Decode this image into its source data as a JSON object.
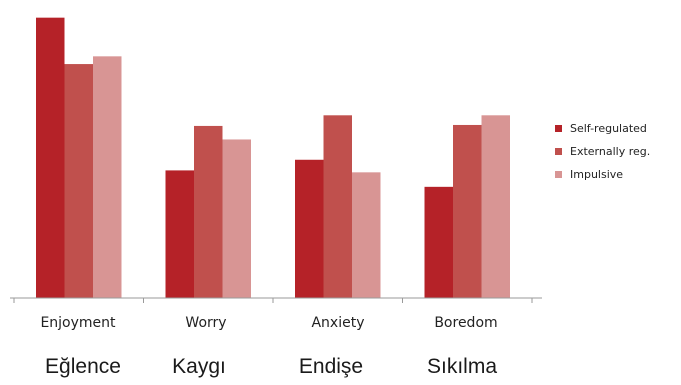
{
  "chart_data": {
    "type": "bar",
    "categories": [
      "Enjoyment",
      "Worry",
      "Anxiety",
      "Boredom"
    ],
    "translations": [
      "Eğlence",
      "Kaygı",
      "Endişe",
      "Sıkılma"
    ],
    "series": [
      {
        "name": "Self-regulated",
        "color": "#b52228",
        "values": [
          290,
          132,
          143,
          115
        ]
      },
      {
        "name": "Externally reg.",
        "color": "#c0504d",
        "values": [
          242,
          178,
          189,
          179
        ]
      },
      {
        "name": "Impulsive",
        "color": "#d89594",
        "values": [
          250,
          164,
          130,
          189
        ]
      }
    ],
    "ylim": [
      0,
      300
    ],
    "grid": false,
    "legend_position": "right"
  }
}
